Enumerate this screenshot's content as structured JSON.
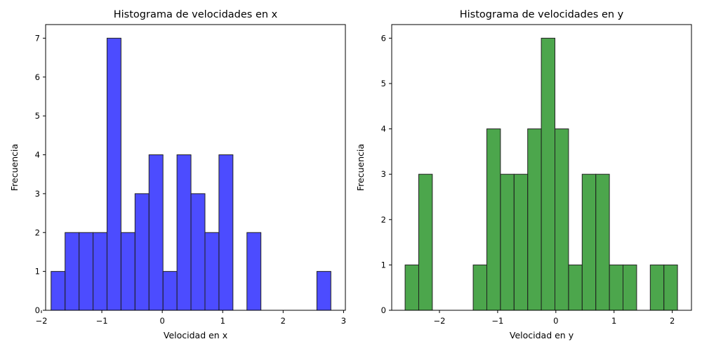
{
  "chart_data": [
    {
      "type": "bar",
      "title": "Histograma de velocidades en x",
      "xlabel": "Velocidad en x",
      "ylabel": "Frecuencia",
      "color": "#0000ff",
      "edge_color": "#222222",
      "xlim": [
        -1.93,
        3.03
      ],
      "ylim": [
        0,
        7.35
      ],
      "x_ticks": [
        -2,
        -1,
        0,
        1,
        2,
        3
      ],
      "x_tick_labels": [
        "−2",
        "−1",
        "0",
        "1",
        "2",
        "3"
      ],
      "y_ticks": [
        0,
        1,
        2,
        3,
        4,
        5,
        6,
        7
      ],
      "y_tick_labels": [
        "0",
        "1",
        "2",
        "3",
        "4",
        "5",
        "6",
        "7"
      ],
      "bin_start": -1.84,
      "bin_width": 0.2315,
      "values": [
        1,
        2,
        2,
        2,
        7,
        2,
        3,
        4,
        1,
        4,
        3,
        2,
        4,
        0,
        2,
        0,
        0,
        0,
        0,
        1
      ],
      "grid": false,
      "legend": false
    },
    {
      "type": "bar",
      "title": "Histograma de velocidades en y",
      "xlabel": "Velocidad en y",
      "ylabel": "Frecuencia",
      "color": "#008000",
      "edge_color": "#222222",
      "xlim": [
        -2.82,
        2.33
      ],
      "ylim": [
        0,
        6.3
      ],
      "x_ticks": [
        -2,
        -1,
        0,
        1,
        2
      ],
      "x_tick_labels": [
        "−2",
        "−1",
        "0",
        "1",
        "2"
      ],
      "y_ticks": [
        0,
        1,
        2,
        3,
        4,
        5,
        6
      ],
      "y_tick_labels": [
        "0",
        "1",
        "2",
        "3",
        "4",
        "5",
        "6"
      ],
      "bin_start": -2.59,
      "bin_width": 0.234,
      "values": [
        1,
        3,
        0,
        0,
        0,
        1,
        4,
        3,
        3,
        4,
        6,
        4,
        1,
        3,
        3,
        1,
        1,
        0,
        1,
        1
      ],
      "grid": false,
      "legend": false
    }
  ]
}
